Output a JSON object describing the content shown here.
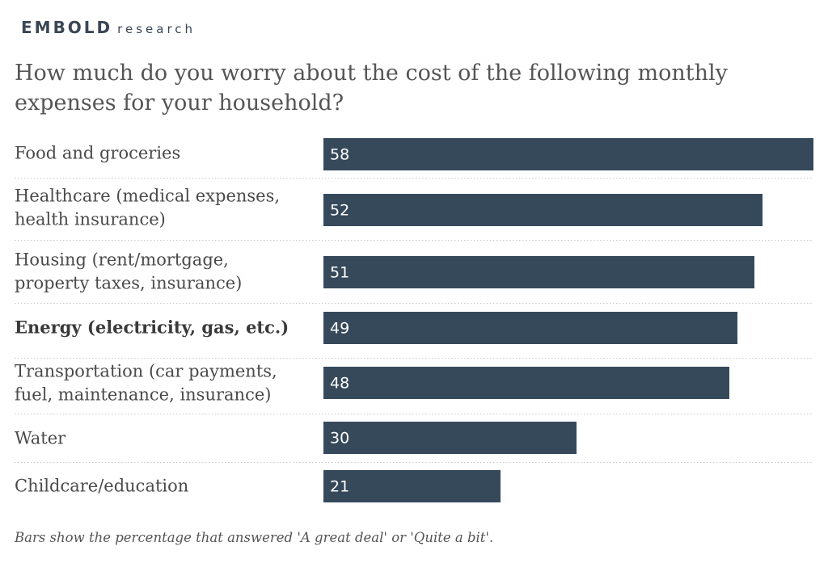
{
  "brand": {
    "name": "EMBOLD",
    "suffix": "research"
  },
  "chart_data": {
    "type": "bar",
    "orientation": "horizontal",
    "title": "How much do you worry about the cost of the following monthly expenses for your household?",
    "categories": [
      [
        "Food and groceries"
      ],
      [
        "Healthcare (medical expenses,",
        "health insurance)"
      ],
      [
        "Housing (rent/mortgage,",
        "property taxes, insurance)"
      ],
      [
        "Energy (electricity, gas, etc.)"
      ],
      [
        "Transportation (car payments,",
        "fuel, maintenance, insurance)"
      ],
      [
        "Water"
      ],
      [
        "Childcare/education"
      ]
    ],
    "values": [
      58,
      52,
      51,
      49,
      48,
      30,
      21
    ],
    "highlighted_category_index": 3,
    "xlim": [
      0,
      58
    ],
    "bar_color": "#36495b",
    "value_label_color": "#ffffff",
    "grid": false,
    "footnote": "Bars show the percentage that answered 'A great deal' or 'Quite a bit'."
  }
}
